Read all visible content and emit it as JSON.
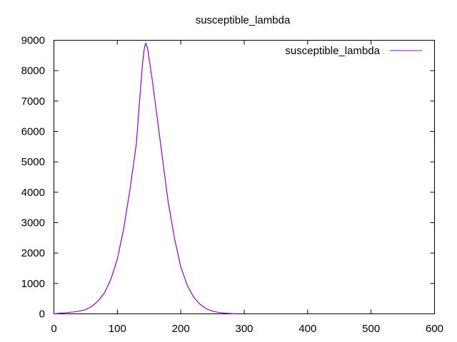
{
  "chart_data": {
    "type": "line",
    "title": "susceptible_lambda",
    "xlabel": "",
    "ylabel": "",
    "xlim": [
      0,
      600
    ],
    "ylim": [
      0,
      9000
    ],
    "x_ticks": [
      0,
      100,
      200,
      300,
      400,
      500,
      600
    ],
    "y_ticks": [
      0,
      1000,
      2000,
      3000,
      4000,
      5000,
      6000,
      7000,
      8000,
      9000
    ],
    "grid": false,
    "legend_position": "top-right",
    "series": [
      {
        "name": "susceptible_lambda",
        "color": "#9400d3",
        "points": [
          [
            0,
            0
          ],
          [
            10,
            20
          ],
          [
            20,
            40
          ],
          [
            30,
            60
          ],
          [
            40,
            90
          ],
          [
            50,
            140
          ],
          [
            60,
            250
          ],
          [
            70,
            430
          ],
          [
            80,
            700
          ],
          [
            90,
            1150
          ],
          [
            100,
            1800
          ],
          [
            110,
            2800
          ],
          [
            120,
            4100
          ],
          [
            130,
            5600
          ],
          [
            135,
            7000
          ],
          [
            140,
            8300
          ],
          [
            143,
            8800
          ],
          [
            145,
            8900
          ],
          [
            148,
            8700
          ],
          [
            150,
            8400
          ],
          [
            155,
            7700
          ],
          [
            160,
            6900
          ],
          [
            170,
            5300
          ],
          [
            180,
            3700
          ],
          [
            190,
            2500
          ],
          [
            200,
            1550
          ],
          [
            210,
            950
          ],
          [
            220,
            560
          ],
          [
            230,
            320
          ],
          [
            240,
            170
          ],
          [
            250,
            90
          ],
          [
            260,
            45
          ],
          [
            270,
            20
          ],
          [
            280,
            8
          ],
          [
            285,
            0
          ]
        ]
      }
    ]
  }
}
